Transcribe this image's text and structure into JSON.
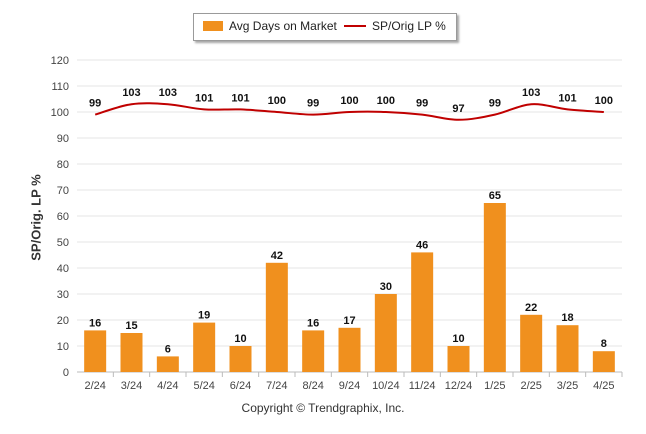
{
  "legend": {
    "bar_label": "Avg Days on Market",
    "line_label": "SP/Orig LP %"
  },
  "copyright": "Copyright © Trendgraphix, Inc.",
  "colors": {
    "bar": "#f0901e",
    "line": "#c00000",
    "grid": "#e6e6e6"
  },
  "chart_data": {
    "type": "bar",
    "categories": [
      "2/24",
      "3/24",
      "4/24",
      "5/24",
      "6/24",
      "7/24",
      "8/24",
      "9/24",
      "10/24",
      "11/24",
      "12/24",
      "1/25",
      "2/25",
      "3/25",
      "4/25"
    ],
    "series": [
      {
        "name": "Avg Days on Market",
        "type": "bar",
        "values": [
          16,
          15,
          6,
          19,
          10,
          42,
          16,
          17,
          30,
          46,
          10,
          65,
          22,
          18,
          8
        ]
      },
      {
        "name": "SP/Orig LP %",
        "type": "line",
        "values": [
          99,
          103,
          103,
          101,
          101,
          100,
          99,
          100,
          100,
          99,
          97,
          99,
          103,
          101,
          100
        ]
      }
    ],
    "xlabel": "",
    "ylabel": "SP/Orig. LP %",
    "ylim": [
      0,
      120
    ],
    "yticks": [
      0,
      10,
      20,
      30,
      40,
      50,
      60,
      70,
      80,
      90,
      100,
      110,
      120
    ],
    "grid": true,
    "legend_position": "top"
  }
}
